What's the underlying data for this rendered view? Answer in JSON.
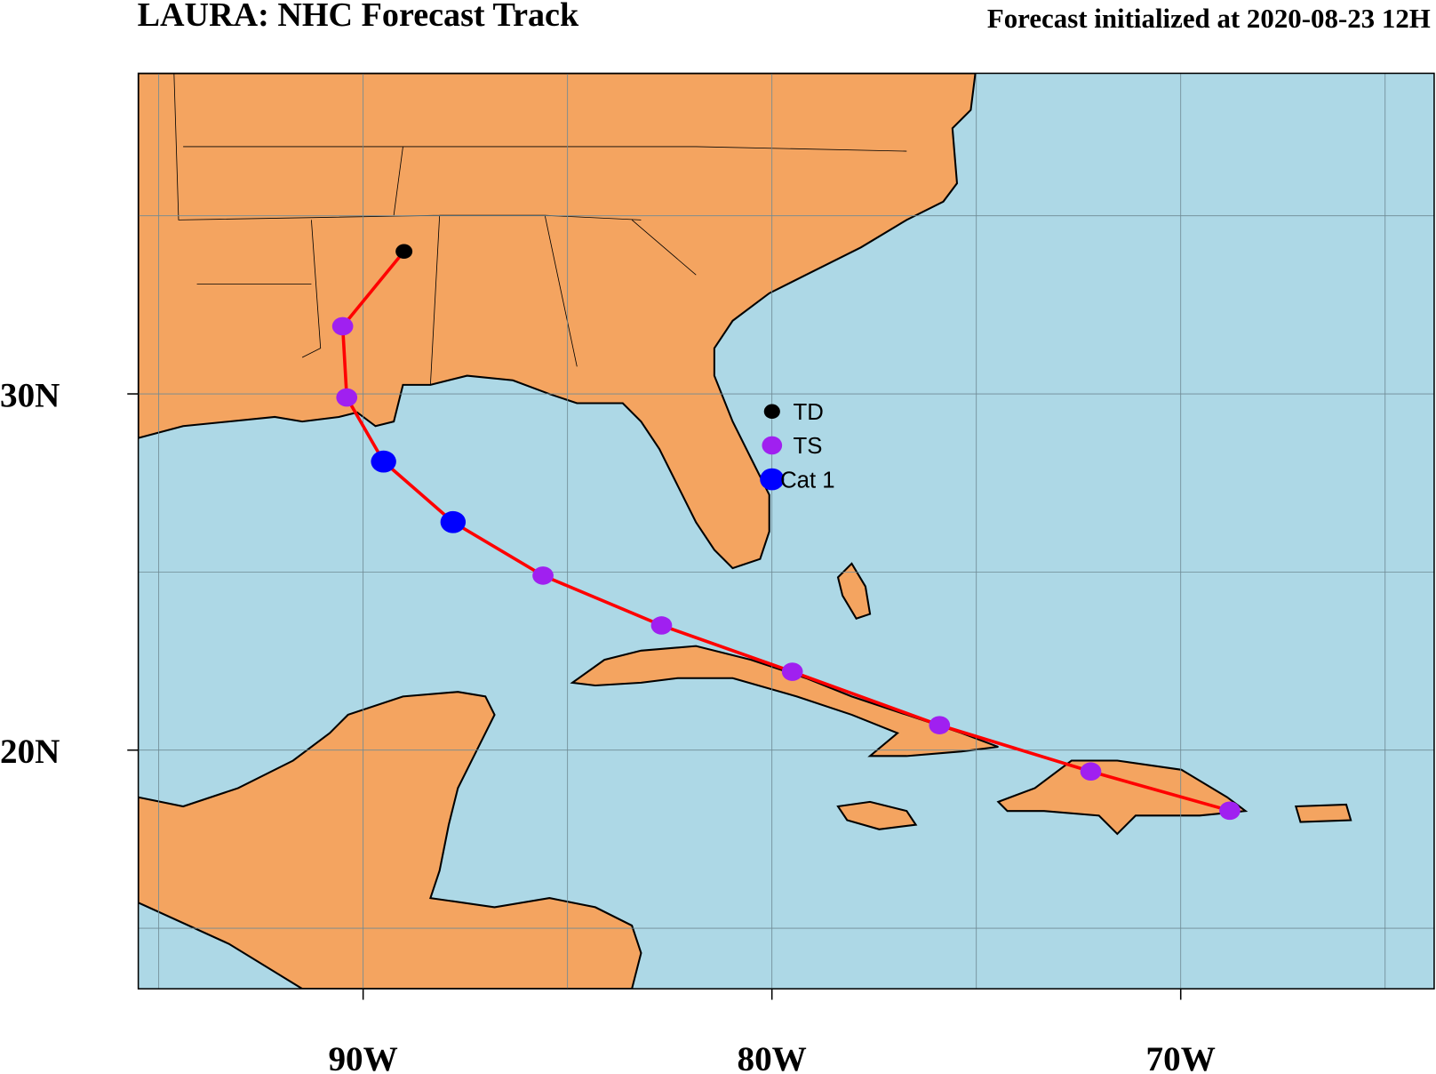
{
  "chart_data": {
    "type": "track",
    "title": "LAURA: NHC Forecast Track",
    "subtitle": "Forecast initialized at 2020-08-23 12H",
    "xlim": [
      -95.5,
      -63.8
    ],
    "ylim": [
      13.3,
      39.0
    ],
    "xticks": [
      {
        "value": -90,
        "label": "90W"
      },
      {
        "value": -80,
        "label": "80W"
      },
      {
        "value": -70,
        "label": "70W"
      }
    ],
    "yticks": [
      {
        "value": 20,
        "label": "20N"
      },
      {
        "value": 30,
        "label": "30N"
      }
    ],
    "xgrid": [
      -95,
      -90,
      -85,
      -80,
      -75,
      -70,
      -65
    ],
    "ygrid": [
      15,
      20,
      25,
      30,
      35
    ],
    "line_color": "#ff0000",
    "legend": [
      {
        "name": "TD",
        "color": "#000000"
      },
      {
        "name": "TS",
        "color": "#a020f0"
      },
      {
        "name": "Cat 1",
        "color": "#0000ff"
      }
    ],
    "track": {
      "lon": [
        -89.0,
        -90.5,
        -90.4,
        -89.5,
        -87.8,
        -85.6,
        -82.7,
        -79.5,
        -75.9,
        -72.2,
        -68.8
      ],
      "lat": [
        34.0,
        31.9,
        29.9,
        28.1,
        26.4,
        24.9,
        23.5,
        22.2,
        20.7,
        19.4,
        18.3
      ],
      "category": [
        "TD",
        "TS",
        "TS",
        "Cat 1",
        "Cat 1",
        "TS",
        "TS",
        "TS",
        "TS",
        "TS",
        "TS"
      ]
    }
  }
}
